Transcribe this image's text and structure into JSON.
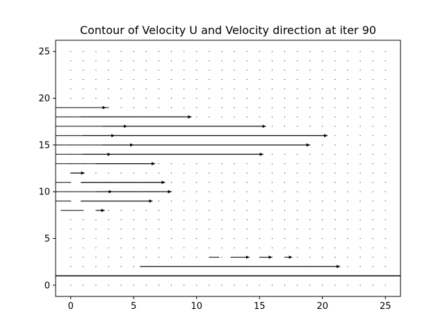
{
  "chart_data": {
    "type": "quiver",
    "title": "Contour of Velocity U and Velocity direction at iter 90",
    "xlabel": "",
    "ylabel": "",
    "xlim": [
      -1.2,
      26.2
    ],
    "ylim": [
      -1.2,
      26.2
    ],
    "xticks": [
      0,
      5,
      10,
      15,
      20,
      25
    ],
    "yticks": [
      0,
      5,
      10,
      15,
      20,
      25
    ],
    "grid": {
      "x_start": 0,
      "x_end": 25,
      "y_start": 0,
      "y_end": 25,
      "step": 1
    },
    "arrow_color": "#000000",
    "rows": [
      {
        "y": 19,
        "segments": [
          [
            -1.2,
            1.0
          ],
          [
            1.0,
            3.0
          ]
        ],
        "arrows": [
          {
            "x0": 1.0,
            "x1": 2.8,
            "dir": "right"
          }
        ]
      },
      {
        "y": 18,
        "segments": [
          [
            -1.2,
            0.0
          ],
          [
            0.0,
            9.6
          ]
        ],
        "arrows": [
          {
            "x0": 0.8,
            "x1": 9.6,
            "dir": "right"
          }
        ]
      },
      {
        "y": 17,
        "segments": [
          [
            -1.2,
            15.5
          ]
        ],
        "arrows": [
          {
            "x0": 2.5,
            "x1": 4.5,
            "dir": "right"
          },
          {
            "x0": 4.5,
            "x1": 15.5,
            "dir": "right"
          }
        ]
      },
      {
        "y": 16,
        "segments": [
          [
            -1.2,
            20.4
          ]
        ],
        "arrows": [
          {
            "x0": 1.0,
            "x1": 3.5,
            "dir": "right"
          },
          {
            "x0": 3.5,
            "x1": 20.4,
            "dir": "right"
          }
        ]
      },
      {
        "y": 15,
        "segments": [
          [
            -1.2,
            19.0
          ]
        ],
        "arrows": [
          {
            "x0": 2.5,
            "x1": 5.0,
            "dir": "right"
          },
          {
            "x0": 5.0,
            "x1": 19.0,
            "dir": "right"
          }
        ]
      },
      {
        "y": 14,
        "segments": [
          [
            -1.2,
            15.3
          ]
        ],
        "arrows": [
          {
            "x0": 1.0,
            "x1": 3.2,
            "dir": "right"
          },
          {
            "x0": 3.2,
            "x1": 15.3,
            "dir": "right"
          }
        ]
      },
      {
        "y": 13,
        "segments": [
          [
            -1.2,
            6.7
          ]
        ],
        "arrows": [
          {
            "x0": 2.0,
            "x1": 6.7,
            "dir": "right"
          }
        ]
      },
      {
        "y": 12,
        "segments": [
          [
            0.0,
            1.1
          ]
        ],
        "arrows": [
          {
            "x0": 0.0,
            "x1": 1.1,
            "dir": "right"
          }
        ]
      },
      {
        "y": 11,
        "segments": [
          [
            -1.2,
            0.0
          ],
          [
            0.8,
            7.5
          ]
        ],
        "arrows": [
          {
            "x0": 0.8,
            "x1": 7.5,
            "dir": "right"
          }
        ]
      },
      {
        "y": 10,
        "segments": [
          [
            -1.2,
            8.0
          ]
        ],
        "arrows": [
          {
            "x0": 2.0,
            "x1": 3.3,
            "dir": "right"
          },
          {
            "x0": 3.3,
            "x1": 8.0,
            "dir": "right"
          }
        ]
      },
      {
        "y": 9,
        "segments": [
          [
            -1.2,
            0.0
          ],
          [
            0.8,
            6.5
          ]
        ],
        "arrows": [
          {
            "x0": 0.8,
            "x1": 6.5,
            "dir": "right"
          }
        ]
      },
      {
        "y": 8,
        "segments": [
          [
            -0.8,
            1.0
          ],
          [
            2.0,
            2.7
          ]
        ],
        "arrows": [
          {
            "x0": 2.0,
            "x1": 2.7,
            "dir": "right"
          }
        ]
      },
      {
        "y": 3,
        "segments": [
          [
            12.7,
            14.2
          ],
          [
            15.0,
            16.0
          ],
          [
            11.0,
            11.8
          ]
        ],
        "arrows": [
          {
            "x0": 12.7,
            "x1": 14.2,
            "dir": "right"
          },
          {
            "x0": 15.0,
            "x1": 16.0,
            "dir": "right"
          },
          {
            "x0": 17.0,
            "x1": 17.6,
            "dir": "right"
          }
        ]
      },
      {
        "y": 2,
        "segments": [
          [
            5.5,
            21.4
          ]
        ],
        "arrows": [
          {
            "x0": 5.5,
            "x1": 21.4,
            "dir": "right"
          }
        ]
      },
      {
        "y": 1,
        "segments": [
          [
            -1.2,
            26.2
          ]
        ],
        "arrows": []
      }
    ]
  }
}
